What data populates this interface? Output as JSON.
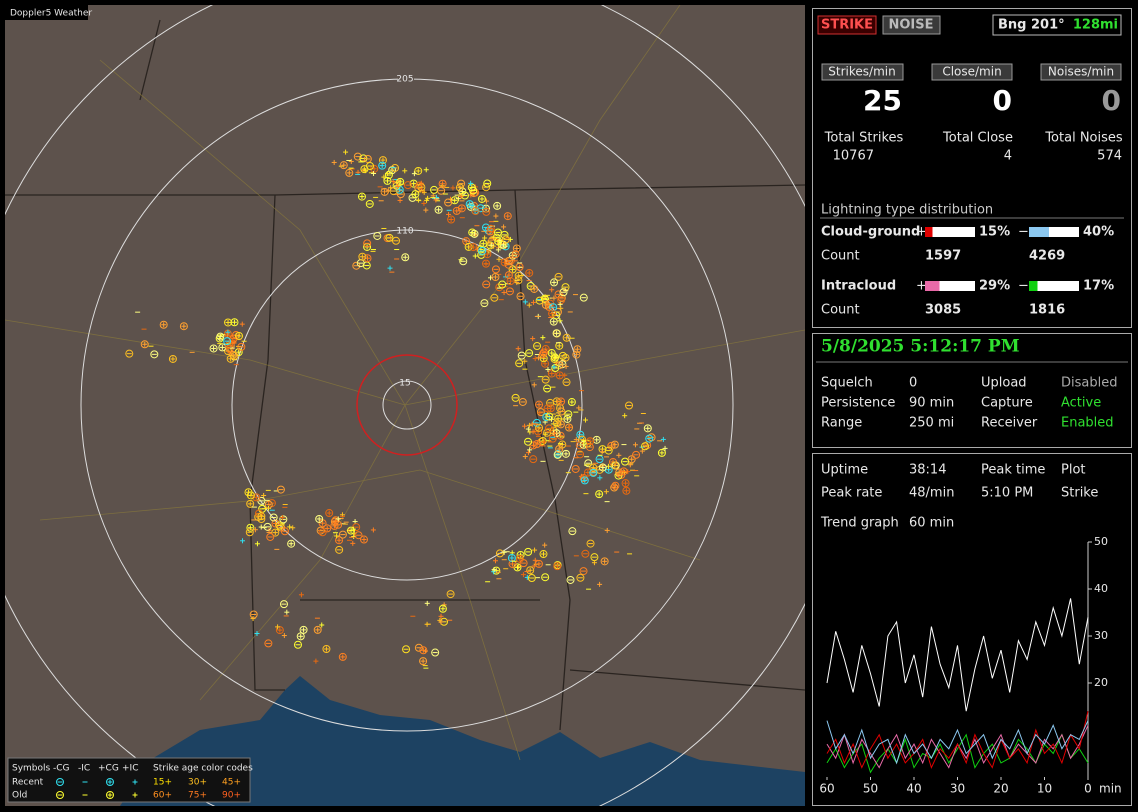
{
  "map": {
    "title": "Doppler5 Weather",
    "ring_labels": [
      "205",
      "110",
      "15"
    ],
    "legend": {
      "symbols_label": "Symbols",
      "symbol_types": [
        "-CG",
        "-IC",
        "+CG",
        "+IC"
      ],
      "age_label": "Strike age color codes",
      "rows": [
        {
          "label": "Recent",
          "ages": [
            "15+",
            "30+",
            "45+"
          ]
        },
        {
          "label": "Old",
          "ages": [
            "60+",
            "75+",
            "90+"
          ]
        }
      ]
    }
  },
  "status": {
    "buttons": [
      "STRIKE",
      "NOISE"
    ],
    "bearing": "Bng 201°",
    "distance": "128mi",
    "rates": [
      {
        "label": "Strikes/min",
        "value": 25
      },
      {
        "label": "Close/min",
        "value": 0
      },
      {
        "label": "Noises/min",
        "value": 0
      }
    ],
    "totals": [
      {
        "label": "Total Strikes",
        "value": 10767
      },
      {
        "label": "Total Close",
        "value": 4
      },
      {
        "label": "Total Noises",
        "value": 574
      }
    ],
    "distribution": {
      "title": "Lightning type distribution",
      "count_label": "Count",
      "rows": [
        {
          "name": "Cloud-ground",
          "signs": [
            "+",
            "−"
          ],
          "values": [
            15,
            40
          ],
          "value_labels": [
            "15%",
            "40%"
          ],
          "counts": [
            1597,
            4269
          ],
          "colors": [
            "#e00000",
            "#8cc8f0"
          ]
        },
        {
          "name": "Intracloud",
          "signs": [
            "+",
            "−"
          ],
          "values": [
            29,
            17
          ],
          "value_labels": [
            "29%",
            "17%"
          ],
          "counts": [
            3085,
            1816
          ],
          "colors": [
            "#e86aa8",
            "#10d010"
          ]
        }
      ]
    }
  },
  "settings": {
    "datetime": "5/8/2025 5:12:17 PM",
    "items": [
      {
        "label": "Squelch",
        "value": 0
      },
      {
        "label": "Upload",
        "value": "Disabled"
      },
      {
        "label": "Persistence",
        "value": "90 min"
      },
      {
        "label": "Capture",
        "value": "Active"
      },
      {
        "label": "Range",
        "value": "250 mi"
      },
      {
        "label": "Receiver",
        "value": "Enabled"
      }
    ]
  },
  "trend": {
    "stats": [
      {
        "label": "Uptime",
        "value": "38:14"
      },
      {
        "label": "Peak rate",
        "value": "48/min"
      },
      {
        "label": "Peak time",
        "value": "5:10 PM"
      },
      {
        "label": "Plot",
        "value": "Strike"
      },
      {
        "label": "Trend graph",
        "value": "60 min"
      }
    ]
  },
  "chart_data": {
    "type": "line",
    "x_unit": "min",
    "x": [
      60,
      58,
      56,
      54,
      52,
      50,
      48,
      46,
      44,
      42,
      40,
      38,
      36,
      34,
      32,
      30,
      28,
      26,
      24,
      22,
      20,
      18,
      16,
      14,
      12,
      10,
      8,
      6,
      4,
      2,
      0
    ],
    "xlim": [
      60,
      0
    ],
    "xticks": [
      60,
      50,
      40,
      30,
      20,
      10,
      0
    ],
    "ylim": [
      0,
      50
    ],
    "yticks": [
      20,
      30,
      40,
      50
    ],
    "series": [
      {
        "color": "#ffffff",
        "values": [
          20,
          31,
          25,
          18,
          28,
          22,
          15,
          30,
          33,
          20,
          26,
          17,
          32,
          24,
          19,
          28,
          14,
          23,
          30,
          21,
          27,
          18,
          29,
          25,
          33,
          28,
          36,
          30,
          38,
          24,
          34
        ]
      },
      {
        "color": "#8cc8f0",
        "values": [
          12,
          6,
          9,
          5,
          10,
          4,
          7,
          8,
          3,
          9,
          5,
          7,
          4,
          8,
          6,
          10,
          5,
          7,
          9,
          4,
          8,
          6,
          10,
          5,
          9,
          7,
          11,
          6,
          9,
          8,
          12
        ]
      },
      {
        "color": "#e00000",
        "values": [
          5,
          8,
          3,
          7,
          2,
          6,
          9,
          4,
          7,
          3,
          5,
          8,
          2,
          6,
          4,
          7,
          3,
          9,
          5,
          2,
          8,
          4,
          6,
          3,
          10,
          5,
          7,
          3,
          9,
          6,
          14
        ]
      },
      {
        "color": "#e86aa8",
        "values": [
          7,
          4,
          9,
          3,
          8,
          5,
          2,
          6,
          9,
          4,
          7,
          3,
          8,
          5,
          2,
          7,
          4,
          8,
          3,
          6,
          9,
          4,
          7,
          5,
          3,
          8,
          6,
          9,
          4,
          7,
          11
        ]
      },
      {
        "color": "#10d010",
        "values": [
          3,
          6,
          2,
          5,
          7,
          1,
          4,
          6,
          3,
          8,
          2,
          5,
          4,
          7,
          3,
          6,
          9,
          2,
          5,
          7,
          3,
          4,
          8,
          6,
          3,
          7,
          5,
          9,
          4,
          6,
          3
        ]
      }
    ]
  }
}
